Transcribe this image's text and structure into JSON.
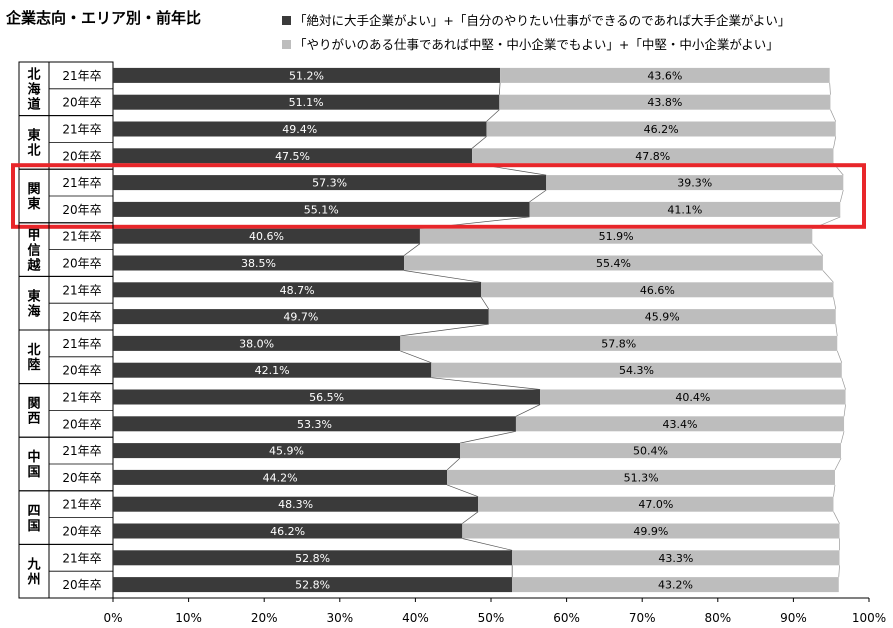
{
  "chart_data": {
    "type": "bar",
    "orientation": "horizontal",
    "stacked": true,
    "title": "企業志向・エリア別・前年比",
    "legend": [
      {
        "label": "「絶対に大手企業がよい」+「自分のやりたい仕事ができるのであれば大手企業がよい」",
        "color": "#3a3a3a"
      },
      {
        "label": "「やりがいのある仕事であれば中堅・中小企業でもよい」+「中堅・中小企業がよい」",
        "color": "#bdbdbd"
      }
    ],
    "legend_position": "top-right",
    "xlim": [
      0,
      100
    ],
    "x_ticks": [
      "0%",
      "10%",
      "20%",
      "30%",
      "40%",
      "50%",
      "60%",
      "70%",
      "80%",
      "90%",
      "100%"
    ],
    "grid": false,
    "highlight": "関東",
    "groups": [
      {
        "name": "北海道",
        "rows": [
          {
            "year": "21年卒",
            "large": 51.2,
            "small": 43.6
          },
          {
            "year": "20年卒",
            "large": 51.1,
            "small": 43.8
          }
        ]
      },
      {
        "name": "東北",
        "rows": [
          {
            "year": "21年卒",
            "large": 49.4,
            "small": 46.2
          },
          {
            "year": "20年卒",
            "large": 47.5,
            "small": 47.8
          }
        ]
      },
      {
        "name": "関東",
        "rows": [
          {
            "year": "21年卒",
            "large": 57.3,
            "small": 39.3
          },
          {
            "year": "20年卒",
            "large": 55.1,
            "small": 41.1
          }
        ]
      },
      {
        "name": "甲信越",
        "rows": [
          {
            "year": "21年卒",
            "large": 40.6,
            "small": 51.9
          },
          {
            "year": "20年卒",
            "large": 38.5,
            "small": 55.4
          }
        ]
      },
      {
        "name": "東海",
        "rows": [
          {
            "year": "21年卒",
            "large": 48.7,
            "small": 46.6
          },
          {
            "year": "20年卒",
            "large": 49.7,
            "small": 45.9
          }
        ]
      },
      {
        "name": "北陸",
        "rows": [
          {
            "year": "21年卒",
            "large": 38.0,
            "small": 57.8
          },
          {
            "year": "20年卒",
            "large": 42.1,
            "small": 54.3
          }
        ]
      },
      {
        "name": "関西",
        "rows": [
          {
            "year": "21年卒",
            "large": 56.5,
            "small": 40.4
          },
          {
            "year": "20年卒",
            "large": 53.3,
            "small": 43.4
          }
        ]
      },
      {
        "name": "中国",
        "rows": [
          {
            "year": "21年卒",
            "large": 45.9,
            "small": 50.4
          },
          {
            "year": "20年卒",
            "large": 44.2,
            "small": 51.3
          }
        ]
      },
      {
        "name": "四国",
        "rows": [
          {
            "year": "21年卒",
            "large": 48.3,
            "small": 47.0
          },
          {
            "year": "20年卒",
            "large": 46.2,
            "small": 49.9
          }
        ]
      },
      {
        "name": "九州",
        "rows": [
          {
            "year": "21年卒",
            "large": 52.8,
            "small": 43.3
          },
          {
            "year": "20年卒",
            "large": 52.8,
            "small": 43.2
          }
        ]
      }
    ]
  }
}
